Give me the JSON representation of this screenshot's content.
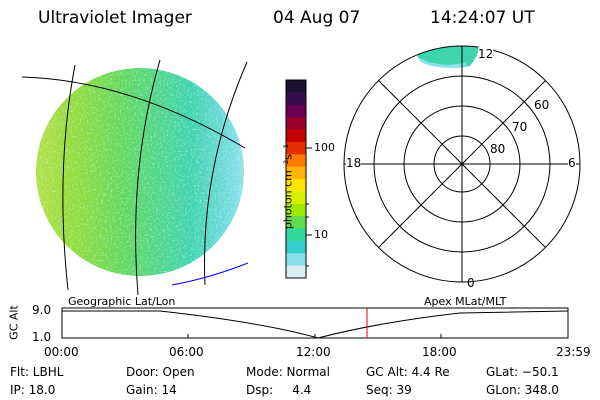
{
  "header": {
    "title": "Ultraviolet Imager",
    "date": "04 Aug 07",
    "time": "14:24:07 UT"
  },
  "colorbar": {
    "unit_label": "photon cm⁻²s⁻¹",
    "ticks": [
      "100",
      "10"
    ],
    "colors": [
      "#1a1030",
      "#3a0a50",
      "#6a0050",
      "#9a0028",
      "#c40000",
      "#e63000",
      "#ff7a00",
      "#ffb400",
      "#ffe600",
      "#d8f000",
      "#a0e800",
      "#5ede4c",
      "#2fd89a",
      "#36cfd0",
      "#8ae0ec",
      "#d8eef2"
    ]
  },
  "polar": {
    "labels": {
      "top": "12",
      "left": "18",
      "right": "6",
      "bottom": "0",
      "lat60": "60",
      "lat70": "70",
      "lat80": "80"
    }
  },
  "timeline": {
    "left_label": "Geographic Lat/Lon",
    "right_label": "Apex MLat/MLT",
    "ylabel": "GC Alt",
    "ytick_top": "9.0",
    "ytick_bottom": "1.0",
    "xticks": [
      "00:00",
      "06:00",
      "12:00",
      "18:00",
      "23:59"
    ],
    "marker_color": "#e00000"
  },
  "info": {
    "flt": "Flt: LBHL",
    "ip": "IP: 18.0",
    "door": "Door: Open",
    "gain": "Gain: 14",
    "mode": "Mode: Normal",
    "dsp": "Dsp:     4.4",
    "gcalt": "GC Alt: 4.4 Re",
    "seq": "Seq: 39",
    "glat": "GLat: −50.1",
    "glon": "GLon: 348.0"
  }
}
